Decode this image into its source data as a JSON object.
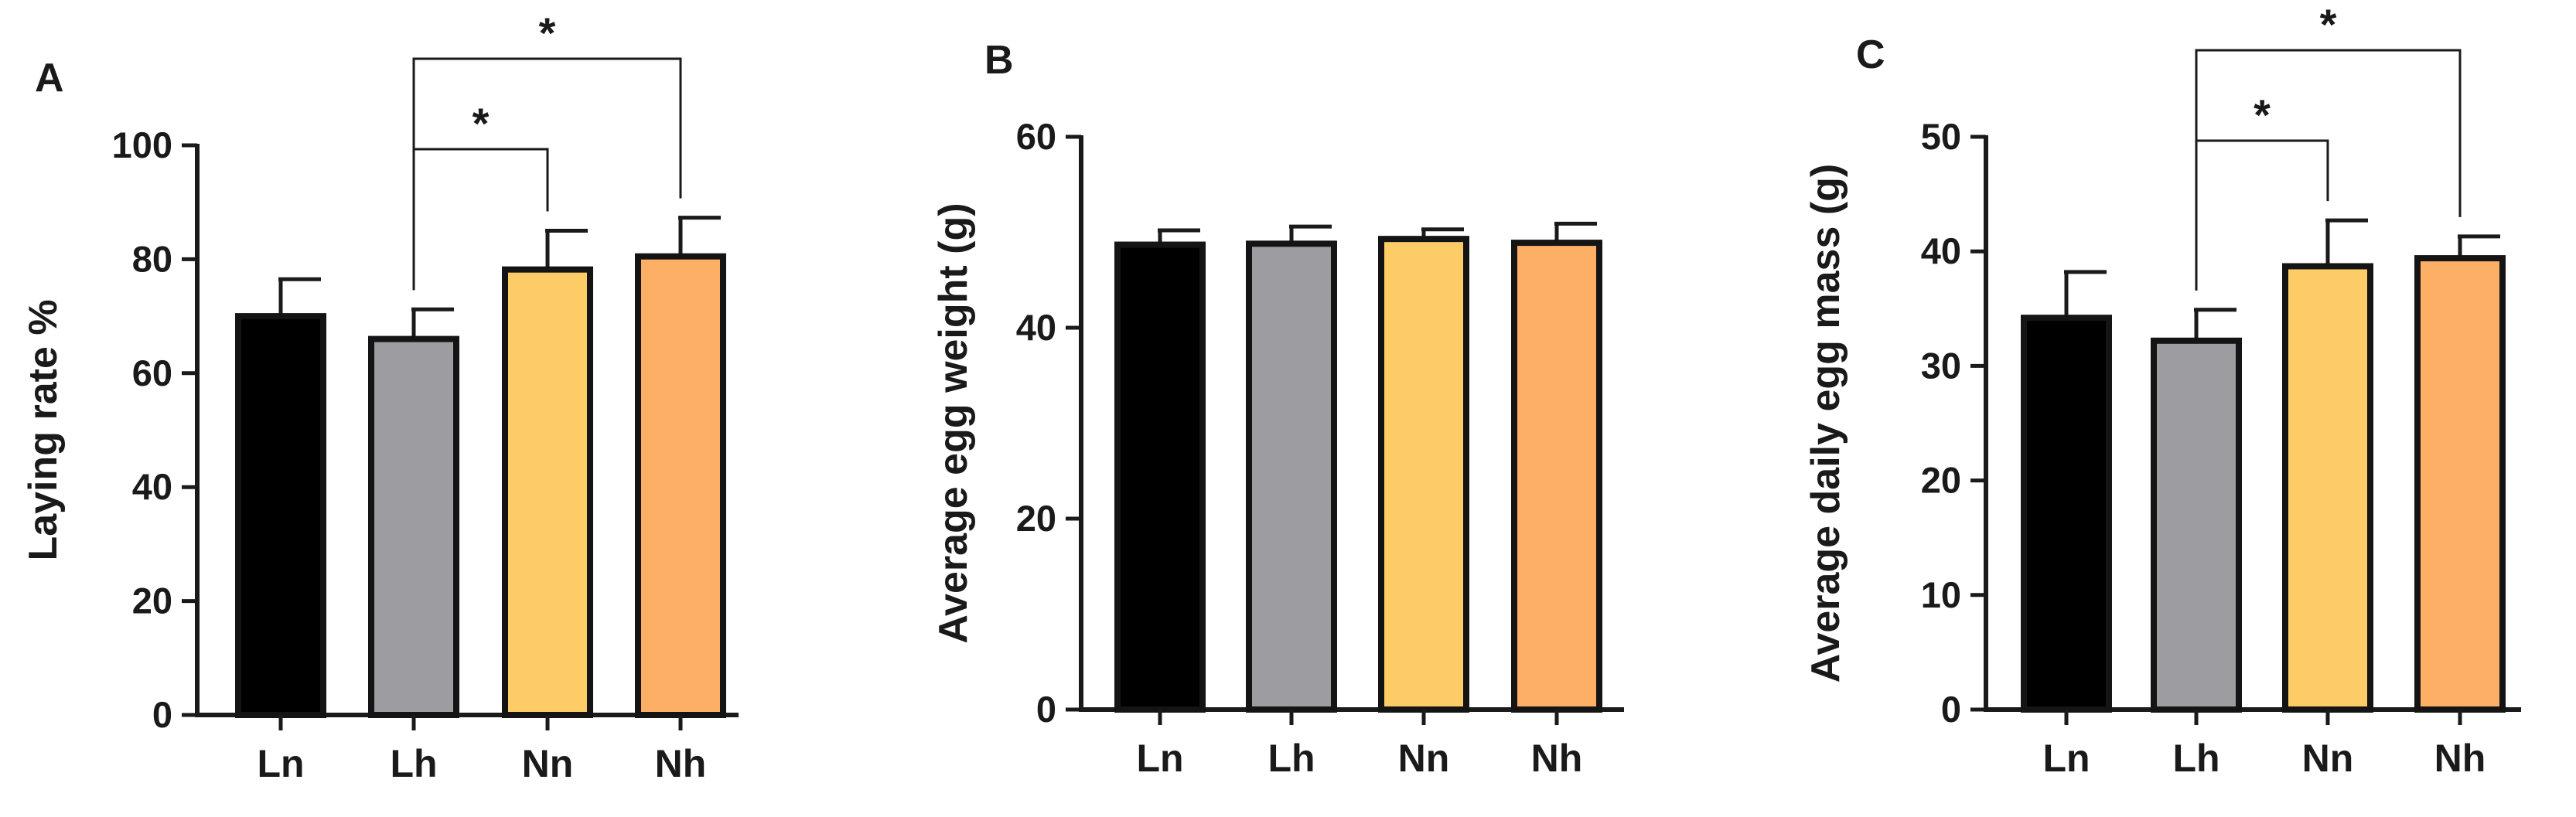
{
  "colors": {
    "Ln": "#000000",
    "Lh": "#9d9ca1",
    "Nn": "#fdcc66",
    "Nh": "#fdaf66",
    "axis": "#1a1a1a"
  },
  "chart_data": [
    {
      "type": "bar",
      "panel": "A",
      "categories": [
        "Ln",
        "Lh",
        "Nn",
        "Nh"
      ],
      "values": [
        70,
        66,
        78.2,
        80.5
      ],
      "errors": [
        6.5,
        5.2,
        6.8,
        6.8
      ],
      "ylabel": "Laying rate %",
      "ylim": [
        0,
        100
      ],
      "yticks": [
        "0",
        "20",
        "40",
        "60",
        "80",
        "100"
      ],
      "significance": [
        {
          "from": "Lh",
          "to": "Nn",
          "label": "*",
          "level": 1
        },
        {
          "from": "Lh",
          "to": "Nh",
          "label": "*",
          "level": 2
        }
      ]
    },
    {
      "type": "bar",
      "panel": "B",
      "categories": [
        "Ln",
        "Lh",
        "Nn",
        "Nh"
      ],
      "values": [
        48.7,
        48.8,
        49.3,
        48.9
      ],
      "errors": [
        1.5,
        1.8,
        1.0,
        2.0
      ],
      "ylabel": "Average egg weight  (g)",
      "ylim": [
        0,
        60
      ],
      "yticks": [
        "0",
        "20",
        "40",
        "60"
      ],
      "significance": []
    },
    {
      "type": "bar",
      "panel": "C",
      "categories": [
        "Ln",
        "Lh",
        "Nn",
        "Nh"
      ],
      "values": [
        34.2,
        32.2,
        38.7,
        39.4
      ],
      "errors": [
        4.0,
        2.7,
        4.0,
        1.9
      ],
      "ylabel": "Average daily egg mass  (g)",
      "ylim": [
        0,
        50
      ],
      "yticks": [
        "0",
        "10",
        "20",
        "30",
        "40",
        "50"
      ],
      "significance": [
        {
          "from": "Lh",
          "to": "Nn",
          "label": "*",
          "level": 1
        },
        {
          "from": "Lh",
          "to": "Nh",
          "label": "*",
          "level": 2
        }
      ]
    }
  ]
}
